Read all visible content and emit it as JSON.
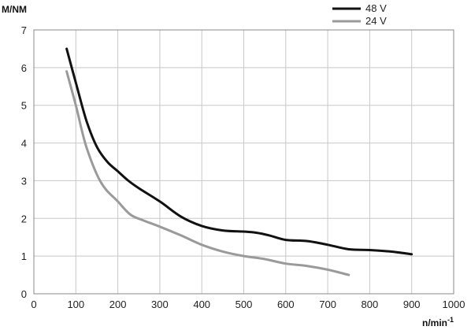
{
  "chart_data": {
    "type": "line",
    "ylabel": "M/NM",
    "xlabel_main": "n/min",
    "xlabel_sup": "-1",
    "xlim": [
      0,
      1000
    ],
    "ylim": [
      0,
      7
    ],
    "x_ticks": [
      0,
      100,
      200,
      300,
      400,
      500,
      600,
      700,
      800,
      900,
      1000
    ],
    "y_ticks": [
      0,
      1,
      2,
      3,
      4,
      5,
      6,
      7
    ],
    "grid": true,
    "legend_position": "top-right, above plot",
    "series": [
      {
        "name": "48 V",
        "color": "#111111",
        "points": [
          [
            78,
            6.5
          ],
          [
            100,
            5.6
          ],
          [
            125,
            4.6
          ],
          [
            150,
            3.9
          ],
          [
            175,
            3.5
          ],
          [
            200,
            3.25
          ],
          [
            225,
            3.0
          ],
          [
            250,
            2.8
          ],
          [
            300,
            2.45
          ],
          [
            350,
            2.05
          ],
          [
            400,
            1.8
          ],
          [
            450,
            1.68
          ],
          [
            500,
            1.65
          ],
          [
            530,
            1.62
          ],
          [
            560,
            1.55
          ],
          [
            600,
            1.43
          ],
          [
            650,
            1.4
          ],
          [
            700,
            1.3
          ],
          [
            750,
            1.18
          ],
          [
            800,
            1.16
          ],
          [
            850,
            1.12
          ],
          [
            900,
            1.05
          ]
        ]
      },
      {
        "name": "24 V",
        "color": "#9a9a9a",
        "points": [
          [
            78,
            5.9
          ],
          [
            100,
            5.0
          ],
          [
            125,
            3.9
          ],
          [
            160,
            2.95
          ],
          [
            200,
            2.45
          ],
          [
            230,
            2.1
          ],
          [
            260,
            1.95
          ],
          [
            300,
            1.78
          ],
          [
            350,
            1.55
          ],
          [
            400,
            1.3
          ],
          [
            450,
            1.12
          ],
          [
            500,
            1.0
          ],
          [
            550,
            0.92
          ],
          [
            600,
            0.8
          ],
          [
            650,
            0.74
          ],
          [
            700,
            0.64
          ],
          [
            750,
            0.5
          ]
        ]
      }
    ]
  }
}
